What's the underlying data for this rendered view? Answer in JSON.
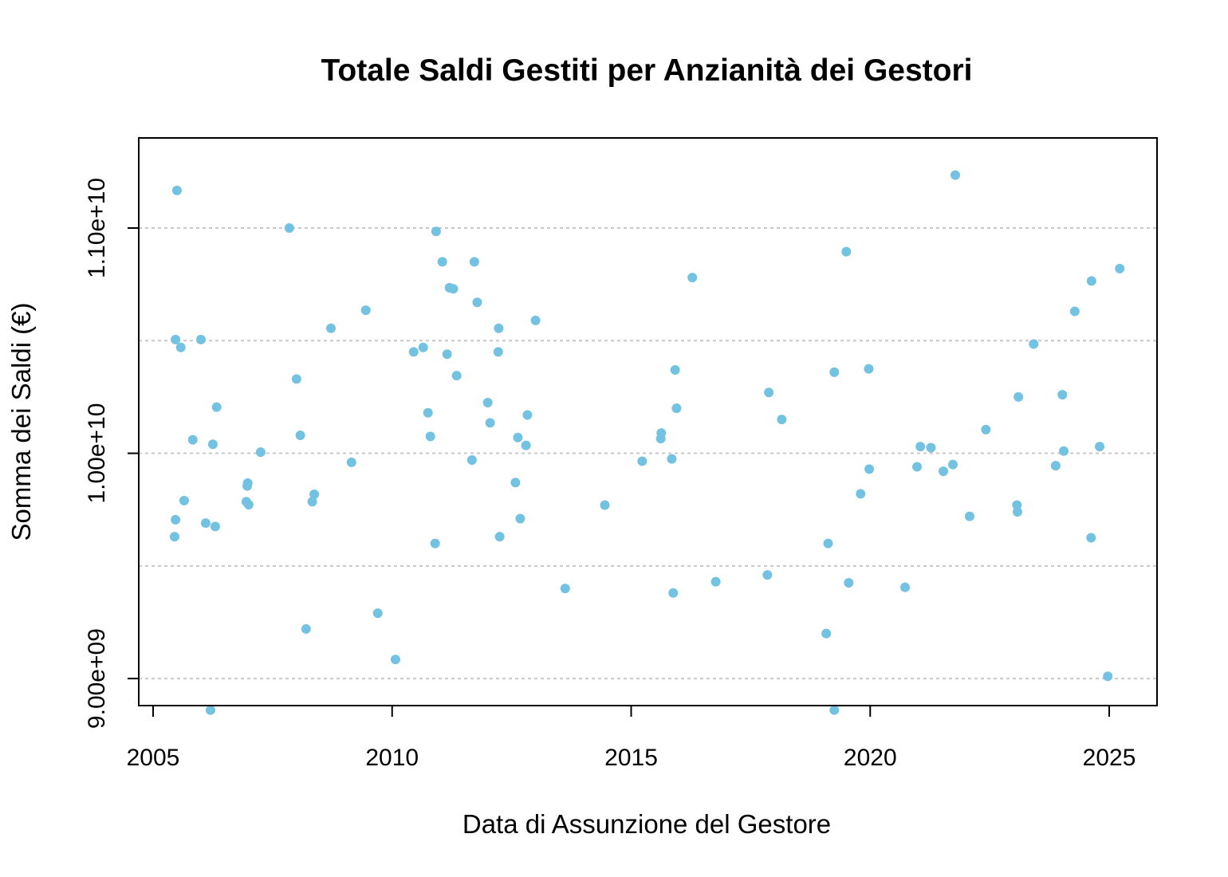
{
  "chart_data": {
    "type": "scatter",
    "title": "Totale Saldi Gestiti per Anzianità dei Gestori",
    "xlabel": "Data di Assunzione del Gestore",
    "ylabel": "Somma dei Saldi (€)",
    "xlim": [
      2004.7,
      2026.0
    ],
    "ylim": [
      8880000000,
      11400000000
    ],
    "x_ticks": [
      2005,
      2010,
      2015,
      2020,
      2025
    ],
    "x_tick_labels": [
      "2005",
      "2010",
      "2015",
      "2020",
      "2025"
    ],
    "y_ticks": [
      9000000000,
      10000000000,
      11000000000
    ],
    "y_tick_labels": [
      "9.00e+09",
      "1.00e+10",
      "1.10e+10"
    ],
    "grid": "horizontal dashed at every 0.5e9",
    "grid_values": [
      9000000000,
      9500000000,
      10000000000,
      10500000000,
      11000000000
    ],
    "point_color": "#74c2e2",
    "grid_color": "#c8c8c8",
    "x": [
      2005.45,
      2005.47,
      2005.47,
      2005.5,
      2005.58,
      2005.65,
      2005.83,
      2006.0,
      2006.1,
      2006.2,
      2006.25,
      2006.3,
      2006.33,
      2006.95,
      2006.97,
      2006.98,
      2007.0,
      2007.25,
      2007.85,
      2008.0,
      2008.08,
      2008.2,
      2008.33,
      2008.37,
      2008.72,
      2009.15,
      2009.45,
      2009.7,
      2010.07,
      2010.45,
      2010.65,
      2010.75,
      2010.8,
      2010.9,
      2010.92,
      2011.05,
      2011.15,
      2011.2,
      2011.28,
      2011.35,
      2011.67,
      2011.72,
      2011.78,
      2012.0,
      2012.05,
      2012.22,
      2012.23,
      2012.25,
      2012.58,
      2012.63,
      2012.68,
      2012.8,
      2012.83,
      2013.0,
      2013.62,
      2014.45,
      2015.23,
      2015.62,
      2015.63,
      2015.85,
      2015.88,
      2015.92,
      2015.95,
      2016.28,
      2016.77,
      2017.85,
      2017.88,
      2018.15,
      2019.08,
      2019.12,
      2019.25,
      2019.25,
      2019.5,
      2019.55,
      2019.8,
      2019.97,
      2019.98,
      2020.73,
      2020.98,
      2021.05,
      2021.27,
      2021.53,
      2021.73,
      2021.78,
      2022.08,
      2022.42,
      2023.07,
      2023.08,
      2023.1,
      2023.42,
      2023.88,
      2024.02,
      2024.05,
      2024.28,
      2024.62,
      2024.63,
      2024.8,
      2024.97,
      2025.22
    ],
    "y": [
      9630000000,
      9705000000,
      10505000000,
      11167000000,
      10470000000,
      9790000000,
      10060000000,
      10505000000,
      9690000000,
      8860000000,
      10040000000,
      9675000000,
      10205000000,
      9785000000,
      9855000000,
      9868000000,
      9772000000,
      10005000000,
      11000000000,
      10330000000,
      10080000000,
      9220000000,
      9785000000,
      9818000000,
      10555000000,
      9960000000,
      10635000000,
      9290000000,
      9085000000,
      10450000000,
      10470000000,
      10180000000,
      10075000000,
      9600000000,
      10985000000,
      10850000000,
      10440000000,
      10735000000,
      10730000000,
      10345000000,
      9970000000,
      10850000000,
      10670000000,
      10225000000,
      10135000000,
      10450000000,
      10555000000,
      9630000000,
      9870000000,
      10070000000,
      9710000000,
      10035000000,
      10170000000,
      10590000000,
      9400000000,
      9770000000,
      9965000000,
      10065000000,
      10090000000,
      9975000000,
      9380000000,
      10370000000,
      10200000000,
      10780000000,
      9430000000,
      9460000000,
      10270000000,
      10150000000,
      9200000000,
      9600000000,
      10360000000,
      8860000000,
      10895000000,
      9425000000,
      9820000000,
      10375000000,
      9930000000,
      9405000000,
      9940000000,
      10030000000,
      10025000000,
      9920000000,
      9950000000,
      11235000000,
      9720000000,
      10105000000,
      9770000000,
      9740000000,
      10250000000,
      10485000000,
      9945000000,
      10260000000,
      10010000000,
      10630000000,
      9625000000,
      10765000000,
      10030000000,
      9010000000,
      10820000000
    ]
  }
}
